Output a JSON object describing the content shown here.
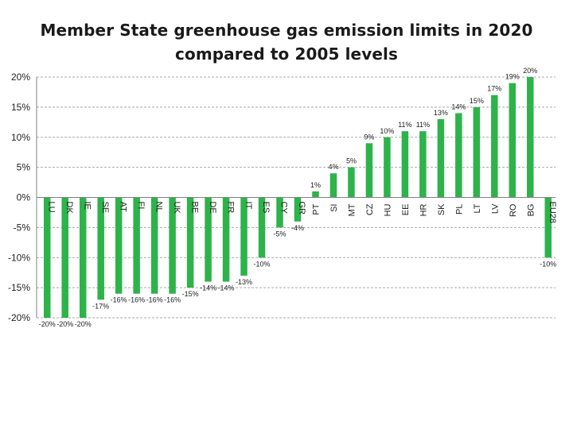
{
  "title_lines": [
    "Member State greenhouse gas emission limits in 2020",
    "compared to 2005 levels"
  ],
  "colors": {
    "bar": "#2db34a",
    "grid": "#a9a9a9",
    "axis": "#808080",
    "text": "#222222",
    "background": "#ffffff"
  },
  "chart_data": {
    "type": "bar",
    "title": "Member State greenhouse gas emission limits in 2020 compared to 2005 levels",
    "xlabel": "",
    "ylabel": "",
    "categories": [
      "LU",
      "DK",
      "IE",
      "SE",
      "AT",
      "FI",
      "NL",
      "UK",
      "BE",
      "DE",
      "FR",
      "IT",
      "ES",
      "CY",
      "GR",
      "PT",
      "SI",
      "MT",
      "CZ",
      "HU",
      "EE",
      "HR",
      "SK",
      "PL",
      "LT",
      "LV",
      "RO",
      "BG",
      "EU28"
    ],
    "values": [
      -20,
      -20,
      -20,
      -17,
      -16,
      -16,
      -16,
      -16,
      -15,
      -14,
      -14,
      -13,
      -10,
      -5,
      -4,
      1,
      4,
      5,
      9,
      10,
      11,
      11,
      13,
      14,
      15,
      17,
      19,
      20,
      -10
    ],
    "data_labels": [
      "-20%",
      "-20%",
      "-20%",
      "-17%",
      "-16%",
      "-16%",
      "-16%",
      "-16%",
      "-15%",
      "-14%",
      "-14%",
      "-13%",
      "-10%",
      "-5%",
      "-4%",
      "1%",
      "4%",
      "5%",
      "9%",
      "10%",
      "11%",
      "11%",
      "13%",
      "14%",
      "15%",
      "17%",
      "19%",
      "20%",
      "-10%"
    ],
    "ylim": [
      -20,
      20
    ],
    "yticks": [
      20,
      15,
      10,
      5,
      0,
      -5,
      -10,
      -15,
      -20
    ],
    "ytick_labels": [
      "20%",
      "15%",
      "10%",
      "5%",
      "0%",
      "-5%",
      "-10%",
      "-15%",
      "-20%"
    ],
    "grid": true,
    "legend": "none"
  }
}
